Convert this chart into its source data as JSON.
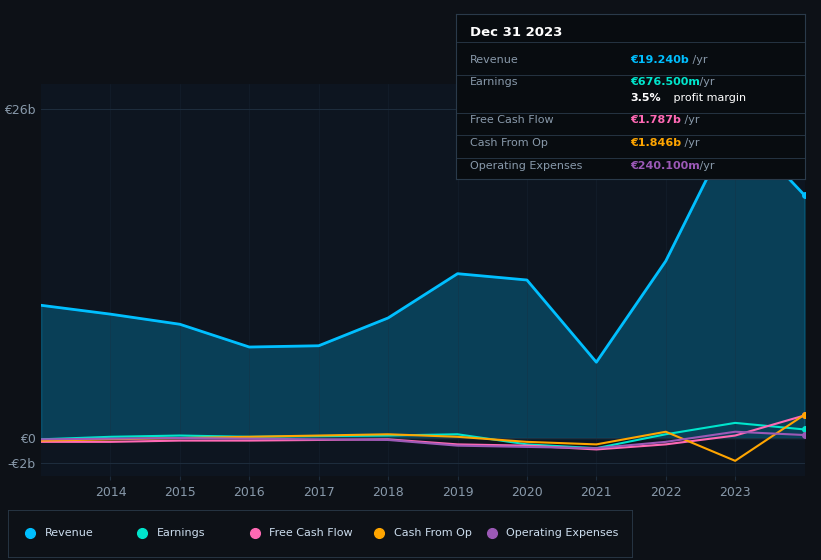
{
  "background_color": "#0d1117",
  "chart_bg_color": "#0d1520",
  "years": [
    2013,
    2014,
    2015,
    2016,
    2017,
    2018,
    2019,
    2020,
    2021,
    2022,
    2023,
    2024
  ],
  "revenue": [
    10.5,
    9.8,
    9.0,
    7.2,
    7.3,
    9.5,
    13.0,
    12.5,
    6.0,
    14.0,
    25.0,
    19.2
  ],
  "earnings": [
    -0.1,
    0.1,
    0.2,
    0.1,
    0.15,
    0.2,
    0.3,
    -0.5,
    -0.8,
    0.3,
    1.2,
    0.68
  ],
  "free_cash_flow": [
    -0.3,
    -0.3,
    -0.2,
    -0.2,
    -0.15,
    -0.1,
    -0.5,
    -0.6,
    -0.9,
    -0.5,
    0.2,
    1.79
  ],
  "cash_from_op": [
    -0.2,
    -0.1,
    0.0,
    0.1,
    0.2,
    0.3,
    0.1,
    -0.3,
    -0.5,
    0.5,
    -1.8,
    1.85
  ],
  "operating_expenses": [
    -0.1,
    -0.05,
    0.0,
    -0.05,
    -0.1,
    -0.15,
    -0.6,
    -0.7,
    -0.8,
    -0.3,
    0.5,
    0.24
  ],
  "revenue_color": "#00bfff",
  "earnings_color": "#00e5cc",
  "free_cash_flow_color": "#ff69b4",
  "cash_from_op_color": "#ffa500",
  "operating_expenses_color": "#9b59b6",
  "grid_color": "#1e2d3d",
  "text_color": "#8899aa",
  "ytick_labels": [
    "€26b",
    "€0",
    "-€2b"
  ],
  "ytick_values": [
    26,
    0,
    -2
  ],
  "xlabel_years": [
    2014,
    2015,
    2016,
    2017,
    2018,
    2019,
    2020,
    2021,
    2022,
    2023
  ],
  "info_box": {
    "title": "Dec 31 2023",
    "rows": [
      {
        "label": "Revenue",
        "value": "€19.240b",
        "value_color": "#00bfff"
      },
      {
        "label": "Earnings",
        "value": "€676.500m",
        "value_color": "#00e5cc"
      },
      {
        "label": "",
        "value": "3.5% profit margin",
        "value_color": "#ffffff"
      },
      {
        "label": "Free Cash Flow",
        "value": "€1.787b",
        "value_color": "#ff69b4"
      },
      {
        "label": "Cash From Op",
        "value": "€1.846b",
        "value_color": "#ffa500"
      },
      {
        "label": "Operating Expenses",
        "value": "€240.100m",
        "value_color": "#9b59b6"
      }
    ]
  },
  "legend_items": [
    {
      "label": "Revenue",
      "color": "#00bfff"
    },
    {
      "label": "Earnings",
      "color": "#00e5cc"
    },
    {
      "label": "Free Cash Flow",
      "color": "#ff69b4"
    },
    {
      "label": "Cash From Op",
      "color": "#ffa500"
    },
    {
      "label": "Operating Expenses",
      "color": "#9b59b6"
    }
  ]
}
